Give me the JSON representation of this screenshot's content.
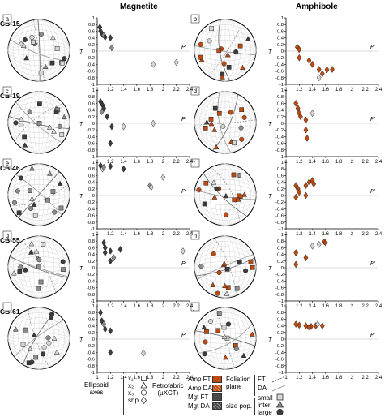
{
  "headers": {
    "magnetite": "Magnetite",
    "amphibole": "Amphibole"
  },
  "colors": {
    "amp_ft": "#c04a10",
    "amp_da": "#c04a10",
    "mgt_ft": "#4a4a4a",
    "mgt_da": "#4a4a4a",
    "small": "#d6d6d6",
    "inter": "#8c8c8c",
    "large": "#3c3c3c"
  },
  "rows": [
    {
      "sample": "CB-15",
      "stereo_left": "a",
      "stereo_right": "b",
      "nets": {
        "left": "mgt",
        "right": "amp"
      }
    },
    {
      "sample": "CB-19",
      "stereo_left": "c",
      "stereo_right": "d",
      "nets": {
        "left": "mgt",
        "right": "amp"
      }
    },
    {
      "sample": "CB-46",
      "stereo_left": "e",
      "stereo_right": "f",
      "nets": {
        "left": "mgt",
        "right": "amp"
      }
    },
    {
      "sample": "CB-55",
      "stereo_left": "g",
      "stereo_right": "h",
      "nets": {
        "left": "mgt",
        "right": "amp"
      }
    },
    {
      "sample": "CB-61",
      "stereo_left": "i",
      "stereo_right": "j",
      "nets": {
        "left": "mgt",
        "right": "amp"
      }
    }
  ],
  "chart_data": [
    {
      "type": "scatter",
      "id": "mgt-CB-15",
      "xlabel": "P'",
      "ylabel": "T",
      "xlim": [
        1,
        2.4
      ],
      "ylim": [
        -1,
        1
      ],
      "xticks": [
        "1",
        "1.2",
        "1.4",
        "1.6",
        "1.8",
        "2",
        "2.2",
        "2.4"
      ],
      "yticks": [
        "1",
        "0.8",
        "0.6",
        "0.4",
        "0.2",
        "0",
        "-0.2",
        "-0.4",
        "-0.6",
        "-0.8",
        "-1"
      ],
      "points": [
        {
          "x": 1.04,
          "y": 0.72,
          "shade": "large"
        },
        {
          "x": 1.05,
          "y": 0.6,
          "shade": "large"
        },
        {
          "x": 1.08,
          "y": 0.5,
          "shade": "large"
        },
        {
          "x": 1.1,
          "y": 0.48,
          "shade": "inter"
        },
        {
          "x": 1.12,
          "y": 0.42,
          "shade": "large"
        },
        {
          "x": 1.2,
          "y": 0.4,
          "shade": "large"
        },
        {
          "x": 1.22,
          "y": 0.1,
          "shade": "inter"
        },
        {
          "x": 1.85,
          "y": -0.4,
          "shade": "small"
        },
        {
          "x": 2.2,
          "y": -0.34,
          "shade": "small"
        }
      ]
    },
    {
      "type": "scatter",
      "id": "amp-CB-15",
      "xlabel": "P'",
      "ylabel": "T",
      "xlim": [
        1,
        2.4
      ],
      "ylim": [
        -1,
        1
      ],
      "xticks": [
        "1",
        "1.2",
        "1.4",
        "1.6",
        "1.8",
        "2",
        "2.2",
        "2.4"
      ],
      "yticks": [
        "1",
        "0.8",
        "0.6",
        "0.4",
        "0.2",
        "0",
        "-0.2",
        "-0.4",
        "-0.6",
        "-0.8",
        "-1"
      ],
      "points": [
        {
          "x": 1.17,
          "y": 0.12,
          "shade": "amp"
        },
        {
          "x": 1.2,
          "y": 0.05,
          "shade": "amp"
        },
        {
          "x": 1.2,
          "y": -0.2,
          "shade": "amp"
        },
        {
          "x": 1.35,
          "y": -0.28,
          "shade": "amp"
        },
        {
          "x": 1.4,
          "y": -0.4,
          "shade": "amp"
        },
        {
          "x": 1.5,
          "y": -0.55,
          "shade": "amp"
        },
        {
          "x": 1.55,
          "y": -0.68,
          "shade": "amp"
        },
        {
          "x": 1.62,
          "y": -0.56,
          "shade": "amp"
        },
        {
          "x": 1.7,
          "y": -0.55,
          "shade": "amp"
        },
        {
          "x": 1.5,
          "y": -0.8,
          "shade": "small"
        }
      ]
    },
    {
      "type": "scatter",
      "id": "mgt-CB-19",
      "xlabel": "P'",
      "ylabel": "T",
      "xlim": [
        1,
        2.4
      ],
      "ylim": [
        -1,
        1
      ],
      "xticks": [
        "1",
        "1.2",
        "1.4",
        "1.6",
        "1.8",
        "2",
        "2.2",
        "2.4"
      ],
      "yticks": [
        "1",
        "0.8",
        "0.6",
        "0.4",
        "0.2",
        "0",
        "-0.2",
        "-0.4",
        "-0.6",
        "-0.8",
        "-1"
      ],
      "points": [
        {
          "x": 1.05,
          "y": 0.65,
          "shade": "large"
        },
        {
          "x": 1.08,
          "y": 0.55,
          "shade": "large"
        },
        {
          "x": 1.1,
          "y": 0.45,
          "shade": "large"
        },
        {
          "x": 1.07,
          "y": 0.35,
          "shade": "inter"
        },
        {
          "x": 1.15,
          "y": 0.2,
          "shade": "large"
        },
        {
          "x": 1.22,
          "y": -0.1,
          "shade": "large"
        },
        {
          "x": 1.2,
          "y": -0.6,
          "shade": "large"
        },
        {
          "x": 1.4,
          "y": -0.1,
          "shade": "small"
        },
        {
          "x": 1.85,
          "y": 0.0,
          "shade": "small"
        }
      ]
    },
    {
      "type": "scatter",
      "id": "amp-CB-19",
      "xlabel": "P'",
      "ylabel": "T",
      "xlim": [
        1,
        2.4
      ],
      "ylim": [
        -1,
        1
      ],
      "xticks": [
        "1",
        "1.2",
        "1.4",
        "1.6",
        "1.8",
        "2",
        "2.2",
        "2.4"
      ],
      "yticks": [
        "1",
        "0.8",
        "0.6",
        "0.4",
        "0.2",
        "0",
        "-0.2",
        "-0.4",
        "-0.6",
        "-0.8",
        "-1"
      ],
      "points": [
        {
          "x": 1.15,
          "y": 0.6,
          "shade": "amp"
        },
        {
          "x": 1.18,
          "y": 0.45,
          "shade": "amp"
        },
        {
          "x": 1.2,
          "y": 0.3,
          "shade": "amp"
        },
        {
          "x": 1.22,
          "y": 0.2,
          "shade": "amp"
        },
        {
          "x": 1.3,
          "y": 0.1,
          "shade": "amp"
        },
        {
          "x": 1.3,
          "y": -0.2,
          "shade": "amp"
        },
        {
          "x": 1.32,
          "y": -0.45,
          "shade": "amp"
        },
        {
          "x": 1.4,
          "y": 0.3,
          "shade": "small"
        }
      ]
    },
    {
      "type": "scatter",
      "id": "mgt-CB-46",
      "xlabel": "P'",
      "ylabel": "T",
      "xlim": [
        1,
        2.4
      ],
      "ylim": [
        -1,
        1
      ],
      "xticks": [
        "1",
        "1.2",
        "1.4",
        "1.6",
        "1.8",
        "2",
        "2.2",
        "2.4"
      ],
      "yticks": [
        "1",
        "0.8",
        "0.6",
        "0.4",
        "0.2",
        "0",
        "-0.2",
        "-0.4",
        "-0.6",
        "-0.8",
        "-1"
      ],
      "points": [
        {
          "x": 1.05,
          "y": 0.9,
          "shade": "large"
        },
        {
          "x": 1.08,
          "y": 0.8,
          "shade": "small"
        },
        {
          "x": 1.1,
          "y": 0.85,
          "shade": "inter"
        },
        {
          "x": 1.2,
          "y": 0.88,
          "shade": "large"
        },
        {
          "x": 1.4,
          "y": 0.8,
          "shade": "large"
        },
        {
          "x": 1.8,
          "y": 0.3,
          "shade": "inter"
        },
        {
          "x": 1.82,
          "y": 0.25,
          "shade": "small"
        },
        {
          "x": 2.0,
          "y": 0.55,
          "shade": "small"
        }
      ]
    },
    {
      "type": "scatter",
      "id": "amp-CB-46",
      "xlabel": "P'",
      "ylabel": "T",
      "xlim": [
        1,
        2.4
      ],
      "ylim": [
        -1,
        1
      ],
      "xticks": [
        "1",
        "1.2",
        "1.4",
        "1.6",
        "1.8",
        "2",
        "2.2",
        "2.4"
      ],
      "yticks": [
        "1",
        "0.8",
        "0.6",
        "0.4",
        "0.2",
        "0",
        "-0.2",
        "-0.4",
        "-0.6",
        "-0.8",
        "-1"
      ],
      "points": [
        {
          "x": 1.15,
          "y": 0.3,
          "shade": "amp"
        },
        {
          "x": 1.18,
          "y": 0.2,
          "shade": "amp"
        },
        {
          "x": 1.2,
          "y": 0.1,
          "shade": "amp"
        },
        {
          "x": 1.3,
          "y": 0.3,
          "shade": "amp"
        },
        {
          "x": 1.35,
          "y": 0.4,
          "shade": "amp"
        },
        {
          "x": 1.4,
          "y": 0.45,
          "shade": "amp"
        },
        {
          "x": 1.42,
          "y": 0.35,
          "shade": "amp"
        },
        {
          "x": 1.15,
          "y": -0.05,
          "shade": "amp"
        },
        {
          "x": 1.3,
          "y": 0.0,
          "shade": "amp"
        }
      ]
    },
    {
      "type": "scatter",
      "id": "mgt-CB-55",
      "xlabel": "P'",
      "ylabel": "T",
      "xlim": [
        1,
        2.4
      ],
      "ylim": [
        -1,
        1
      ],
      "xticks": [
        "1",
        "1.2",
        "1.4",
        "1.6",
        "1.8",
        "2",
        "2.2",
        "2.4"
      ],
      "yticks": [
        "1",
        "0.8",
        "0.6",
        "0.4",
        "0.2",
        "0",
        "-0.2",
        "-0.4",
        "-0.6",
        "-0.8",
        "-1"
      ],
      "points": [
        {
          "x": 1.1,
          "y": 0.75,
          "shade": "large"
        },
        {
          "x": 1.12,
          "y": 0.6,
          "shade": "large"
        },
        {
          "x": 1.12,
          "y": 0.45,
          "shade": "large"
        },
        {
          "x": 1.2,
          "y": 0.5,
          "shade": "large"
        },
        {
          "x": 1.35,
          "y": 0.55,
          "shade": "large"
        },
        {
          "x": 1.25,
          "y": 0.3,
          "shade": "inter"
        },
        {
          "x": 1.2,
          "y": 0.2,
          "shade": "large"
        },
        {
          "x": 2.3,
          "y": 0.5,
          "shade": "small"
        }
      ]
    },
    {
      "type": "scatter",
      "id": "amp-CB-55",
      "xlabel": "P'",
      "ylabel": "T",
      "xlim": [
        1,
        2.4
      ],
      "ylim": [
        -1,
        1
      ],
      "xticks": [
        "1",
        "1.2",
        "1.4",
        "1.6",
        "1.8",
        "2",
        "2.2",
        "2.4"
      ],
      "yticks": [
        "1",
        "0.8",
        "0.6",
        "0.4",
        "0.2",
        "0",
        "-0.2",
        "-0.4",
        "-0.6",
        "-0.8",
        "-1"
      ],
      "points": [
        {
          "x": 1.15,
          "y": 0.45,
          "shade": "amp"
        },
        {
          "x": 1.15,
          "y": 0.1,
          "shade": "amp"
        },
        {
          "x": 1.4,
          "y": 0.65,
          "shade": "small"
        },
        {
          "x": 1.5,
          "y": 0.7,
          "shade": "small"
        },
        {
          "x": 1.58,
          "y": 0.78,
          "shade": "amp"
        },
        {
          "x": 1.6,
          "y": 0.75,
          "shade": "amp"
        },
        {
          "x": 1.3,
          "y": 0.3,
          "shade": "amp"
        }
      ]
    },
    {
      "type": "scatter",
      "id": "mgt-CB-61",
      "xlabel": "P'",
      "ylabel": "T",
      "xlim": [
        1,
        2.4
      ],
      "ylim": [
        -1,
        1
      ],
      "xticks": [
        "1",
        "1.2",
        "1.4",
        "1.6",
        "1.8",
        "2",
        "2.2",
        "2.4"
      ],
      "yticks": [
        "1",
        "0.8",
        "0.6",
        "0.4",
        "0.2",
        "0",
        "-0.2",
        "-0.4",
        "-0.6",
        "-0.8",
        "-1"
      ],
      "points": [
        {
          "x": 1.05,
          "y": 0.8,
          "shade": "large"
        },
        {
          "x": 1.07,
          "y": 0.55,
          "shade": "large"
        },
        {
          "x": 1.1,
          "y": 0.45,
          "shade": "inter"
        },
        {
          "x": 1.12,
          "y": 0.3,
          "shade": "large"
        },
        {
          "x": 1.2,
          "y": 0.25,
          "shade": "large"
        },
        {
          "x": 1.2,
          "y": -0.4,
          "shade": "large"
        },
        {
          "x": 1.7,
          "y": -0.42,
          "shade": "small"
        }
      ]
    },
    {
      "type": "scatter",
      "id": "amp-CB-61",
      "xlabel": "P'",
      "ylabel": "T",
      "xlim": [
        1,
        2.4
      ],
      "ylim": [
        -1,
        1
      ],
      "xticks": [
        "1",
        "1.2",
        "1.4",
        "1.6",
        "1.8",
        "2",
        "2.2",
        "2.4"
      ],
      "yticks": [
        "1",
        "0.8",
        "0.6",
        "0.4",
        "0.2",
        "0",
        "-0.2",
        "-0.4",
        "-0.6",
        "-0.8",
        "-1"
      ],
      "points": [
        {
          "x": 1.15,
          "y": 0.45,
          "shade": "amp"
        },
        {
          "x": 1.2,
          "y": 0.42,
          "shade": "amp"
        },
        {
          "x": 1.3,
          "y": 0.4,
          "shade": "amp"
        },
        {
          "x": 1.38,
          "y": 0.38,
          "shade": "amp"
        },
        {
          "x": 1.45,
          "y": 0.4,
          "shade": "amp"
        },
        {
          "x": 1.55,
          "y": 0.4,
          "shade": "amp"
        },
        {
          "x": 1.35,
          "y": 0.35,
          "shade": "amp"
        },
        {
          "x": 1.48,
          "y": 0.45,
          "shade": "small"
        }
      ]
    }
  ],
  "legend": {
    "ellipsoid_axes": "Ellipsoid\naxes",
    "axis_labels": [
      "x₁",
      "x₂",
      "x₃",
      "shp"
    ],
    "petrofabric": "Petrofabric\n(µXCT)",
    "fabric_items": [
      "Amp FT",
      "Amp DA",
      "Mgt FT",
      "Mgt DA"
    ],
    "foliation_plane": "Foliation\nplane",
    "foliation_items": [
      "FT",
      "DA"
    ],
    "size_pop": "size pop.",
    "size_items": [
      "small",
      "inter.",
      "large"
    ]
  }
}
